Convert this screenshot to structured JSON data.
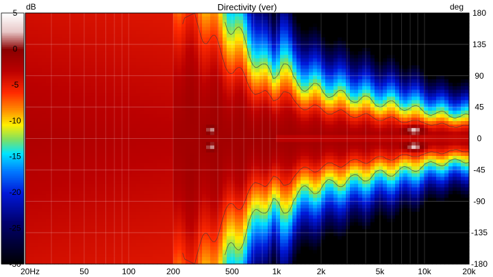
{
  "chart_data": {
    "type": "heatmap",
    "title": "Directivity (ver)",
    "colorbar": {
      "unit_label": "dB",
      "range": [
        -30,
        5
      ],
      "ticks": [
        5,
        0,
        -5,
        -10,
        -15,
        -20,
        -25,
        -30
      ],
      "stops": [
        {
          "v": 5,
          "color": "#ffffff"
        },
        {
          "v": 2.5,
          "color": "#e7c7c7"
        },
        {
          "v": 0,
          "color": "#8b0000"
        },
        {
          "v": -3,
          "color": "#bb0000"
        },
        {
          "v": -6,
          "color": "#ff2a00"
        },
        {
          "v": -8.5,
          "color": "#ff9000"
        },
        {
          "v": -10.5,
          "color": "#ffef00"
        },
        {
          "v": -12.5,
          "color": "#80e060"
        },
        {
          "v": -14.5,
          "color": "#00e5ff"
        },
        {
          "v": -17,
          "color": "#0078ff"
        },
        {
          "v": -20,
          "color": "#0018d8"
        },
        {
          "v": -24,
          "color": "#000070"
        },
        {
          "v": -30,
          "color": "#000000"
        }
      ]
    },
    "x_axis": {
      "scale": "log",
      "range": [
        20,
        20000
      ],
      "ticks": [
        {
          "value": 20,
          "label": "20Hz"
        },
        {
          "value": 50,
          "label": "50"
        },
        {
          "value": 100,
          "label": "100"
        },
        {
          "value": 200,
          "label": "200"
        },
        {
          "value": 500,
          "label": "500"
        },
        {
          "value": 1000,
          "label": "1k"
        },
        {
          "value": 2000,
          "label": "2k"
        },
        {
          "value": 5000,
          "label": "5k"
        },
        {
          "value": 10000,
          "label": "10k"
        },
        {
          "value": 20000,
          "label": "20k"
        }
      ]
    },
    "y_axis": {
      "unit_label": "deg",
      "range": [
        -180,
        180
      ],
      "ticks": [
        180,
        135,
        90,
        45,
        0,
        -45,
        -90,
        -135,
        -180
      ]
    },
    "grid": true,
    "contours_db": [
      -6,
      -12
    ],
    "beamwidth_profile": [
      {
        "f": 20,
        "deg": 178
      },
      {
        "f": 200,
        "deg": 178
      },
      {
        "f": 300,
        "deg": 165
      },
      {
        "f": 330,
        "deg": 150
      },
      {
        "f": 400,
        "deg": 125
      },
      {
        "f": 500,
        "deg": 100
      },
      {
        "f": 650,
        "deg": 78
      },
      {
        "f": 800,
        "deg": 62
      },
      {
        "f": 950,
        "deg": 55
      },
      {
        "f": 1100,
        "deg": 72
      },
      {
        "f": 1300,
        "deg": 52
      },
      {
        "f": 2000,
        "deg": 46
      },
      {
        "f": 3000,
        "deg": 42
      },
      {
        "f": 5000,
        "deg": 38
      },
      {
        "f": 8000,
        "deg": 35
      },
      {
        "f": 12000,
        "deg": 30
      },
      {
        "f": 20000,
        "deg": 28
      }
    ]
  }
}
